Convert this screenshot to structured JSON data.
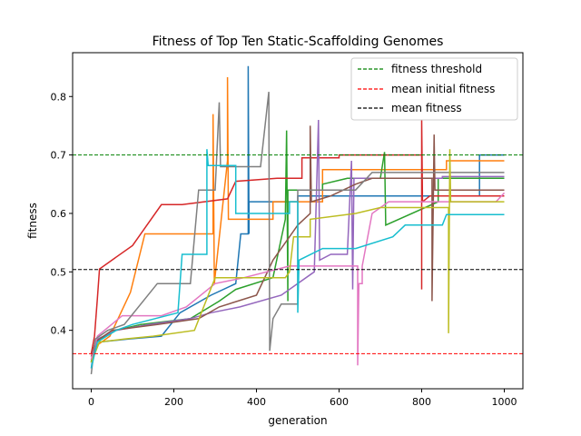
{
  "chart_data": {
    "type": "line",
    "title": "Fitness of Top Ten Static-Scaffolding Genomes",
    "xlabel": "generation",
    "ylabel": "fitness",
    "xlim": [
      -45,
      1045
    ],
    "ylim": [
      0.3,
      0.875
    ],
    "xticks": [
      0,
      200,
      400,
      600,
      800,
      1000
    ],
    "yticks": [
      0.4,
      0.5,
      0.6,
      0.7,
      0.8
    ],
    "xtick_labels": [
      "0",
      "200",
      "400",
      "600",
      "800",
      "1000"
    ],
    "ytick_labels": [
      "0.4",
      "0.5",
      "0.6",
      "0.7",
      "0.8"
    ],
    "grid": false,
    "legend_position": "top-right",
    "reference_lines": [
      {
        "name": "fitness threshold",
        "y": 0.7,
        "color": "#008000"
      },
      {
        "name": "mean initial fitness",
        "y": 0.36,
        "color": "#ff0000"
      },
      {
        "name": "mean fitness",
        "y": 0.504,
        "color": "#000000"
      }
    ],
    "series": [
      {
        "color": "#1f77b4",
        "points": [
          [
            0,
            0.335
          ],
          [
            5,
            0.36
          ],
          [
            20,
            0.38
          ],
          [
            90,
            0.385
          ],
          [
            170,
            0.39
          ],
          [
            215,
            0.43
          ],
          [
            290,
            0.46
          ],
          [
            350,
            0.48
          ],
          [
            362,
            0.565
          ],
          [
            380,
            0.565
          ],
          [
            380,
            0.852
          ],
          [
            382,
            0.565
          ],
          [
            382,
            0.62
          ],
          [
            420,
            0.62
          ],
          [
            500,
            0.62
          ],
          [
            500,
            0.63
          ],
          [
            640,
            0.63
          ],
          [
            940,
            0.63
          ],
          [
            940,
            0.7
          ],
          [
            1000,
            0.7
          ]
        ]
      },
      {
        "color": "#ff7f0e",
        "points": [
          [
            0,
            0.345
          ],
          [
            5,
            0.37
          ],
          [
            45,
            0.39
          ],
          [
            95,
            0.465
          ],
          [
            130,
            0.565
          ],
          [
            230,
            0.565
          ],
          [
            295,
            0.565
          ],
          [
            295,
            0.77
          ],
          [
            298,
            0.48
          ],
          [
            330,
            0.69
          ],
          [
            330,
            0.833
          ],
          [
            332,
            0.59
          ],
          [
            440,
            0.59
          ],
          [
            440,
            0.62
          ],
          [
            560,
            0.62
          ],
          [
            560,
            0.675
          ],
          [
            860,
            0.675
          ],
          [
            860,
            0.69
          ],
          [
            1000,
            0.69
          ]
        ]
      },
      {
        "color": "#2ca02c",
        "points": [
          [
            0,
            0.345
          ],
          [
            10,
            0.38
          ],
          [
            60,
            0.4
          ],
          [
            120,
            0.41
          ],
          [
            240,
            0.42
          ],
          [
            310,
            0.45
          ],
          [
            350,
            0.47
          ],
          [
            440,
            0.49
          ],
          [
            470,
            0.59
          ],
          [
            473,
            0.742
          ],
          [
            476,
            0.45
          ],
          [
            476,
            0.64
          ],
          [
            560,
            0.64
          ],
          [
            560,
            0.65
          ],
          [
            620,
            0.66
          ],
          [
            700,
            0.66
          ],
          [
            710,
            0.705
          ],
          [
            713,
            0.58
          ],
          [
            840,
            0.62
          ],
          [
            840,
            0.66
          ],
          [
            1000,
            0.66
          ]
        ]
      },
      {
        "color": "#d62728",
        "points": [
          [
            0,
            0.36
          ],
          [
            8,
            0.39
          ],
          [
            15,
            0.455
          ],
          [
            20,
            0.505
          ],
          [
            100,
            0.545
          ],
          [
            170,
            0.615
          ],
          [
            220,
            0.615
          ],
          [
            330,
            0.625
          ],
          [
            350,
            0.655
          ],
          [
            450,
            0.66
          ],
          [
            510,
            0.66
          ],
          [
            510,
            0.695
          ],
          [
            600,
            0.695
          ],
          [
            600,
            0.7
          ],
          [
            800,
            0.7
          ],
          [
            800,
            0.47
          ],
          [
            800,
            0.76
          ],
          [
            802,
            0.62
          ],
          [
            820,
            0.63
          ],
          [
            1000,
            0.63
          ]
        ]
      },
      {
        "color": "#9467bd",
        "points": [
          [
            0,
            0.35
          ],
          [
            15,
            0.385
          ],
          [
            60,
            0.4
          ],
          [
            140,
            0.41
          ],
          [
            240,
            0.42
          ],
          [
            290,
            0.43
          ],
          [
            360,
            0.44
          ],
          [
            460,
            0.46
          ],
          [
            540,
            0.5
          ],
          [
            550,
            0.76
          ],
          [
            553,
            0.52
          ],
          [
            580,
            0.53
          ],
          [
            620,
            0.53
          ],
          [
            630,
            0.69
          ],
          [
            633,
            0.47
          ],
          [
            636,
            0.66
          ],
          [
            700,
            0.66
          ],
          [
            850,
            0.66
          ],
          [
            850,
            0.663
          ],
          [
            1000,
            0.663
          ]
        ]
      },
      {
        "color": "#8c564b",
        "points": [
          [
            0,
            0.355
          ],
          [
            10,
            0.38
          ],
          [
            50,
            0.4
          ],
          [
            160,
            0.41
          ],
          [
            260,
            0.42
          ],
          [
            310,
            0.44
          ],
          [
            400,
            0.46
          ],
          [
            440,
            0.52
          ],
          [
            500,
            0.58
          ],
          [
            530,
            0.6
          ],
          [
            530,
            0.75
          ],
          [
            533,
            0.62
          ],
          [
            580,
            0.63
          ],
          [
            640,
            0.65
          ],
          [
            680,
            0.66
          ],
          [
            780,
            0.66
          ],
          [
            825,
            0.66
          ],
          [
            825,
            0.45
          ],
          [
            828,
            0.62
          ],
          [
            830,
            0.735
          ],
          [
            832,
            0.64
          ],
          [
            1000,
            0.64
          ]
        ]
      },
      {
        "color": "#e377c2",
        "points": [
          [
            0,
            0.35
          ],
          [
            15,
            0.39
          ],
          [
            75,
            0.425
          ],
          [
            170,
            0.425
          ],
          [
            230,
            0.44
          ],
          [
            300,
            0.48
          ],
          [
            370,
            0.49
          ],
          [
            480,
            0.51
          ],
          [
            560,
            0.51
          ],
          [
            645,
            0.51
          ],
          [
            645,
            0.34
          ],
          [
            648,
            0.48
          ],
          [
            656,
            0.48
          ],
          [
            656,
            0.51
          ],
          [
            680,
            0.6
          ],
          [
            720,
            0.62
          ],
          [
            860,
            0.62
          ],
          [
            980,
            0.62
          ],
          [
            1000,
            0.635
          ]
        ]
      },
      {
        "color": "#7f7f7f",
        "points": [
          [
            0,
            0.325
          ],
          [
            10,
            0.385
          ],
          [
            40,
            0.4
          ],
          [
            80,
            0.41
          ],
          [
            160,
            0.48
          ],
          [
            240,
            0.48
          ],
          [
            260,
            0.64
          ],
          [
            300,
            0.64
          ],
          [
            310,
            0.79
          ],
          [
            313,
            0.68
          ],
          [
            410,
            0.68
          ],
          [
            430,
            0.808
          ],
          [
            432,
            0.365
          ],
          [
            440,
            0.42
          ],
          [
            460,
            0.445
          ],
          [
            500,
            0.445
          ],
          [
            500,
            0.64
          ],
          [
            580,
            0.64
          ],
          [
            640,
            0.64
          ],
          [
            680,
            0.67
          ],
          [
            860,
            0.67
          ],
          [
            1000,
            0.67
          ]
        ]
      },
      {
        "color": "#bcbd22",
        "points": [
          [
            0,
            0.345
          ],
          [
            20,
            0.38
          ],
          [
            80,
            0.385
          ],
          [
            150,
            0.39
          ],
          [
            250,
            0.4
          ],
          [
            300,
            0.49
          ],
          [
            350,
            0.49
          ],
          [
            470,
            0.49
          ],
          [
            480,
            0.5
          ],
          [
            490,
            0.56
          ],
          [
            530,
            0.56
          ],
          [
            530,
            0.59
          ],
          [
            640,
            0.6
          ],
          [
            700,
            0.61
          ],
          [
            865,
            0.61
          ],
          [
            865,
            0.395
          ],
          [
            868,
            0.71
          ],
          [
            870,
            0.62
          ],
          [
            900,
            0.62
          ],
          [
            1000,
            0.62
          ]
        ]
      },
      {
        "color": "#17becf",
        "points": [
          [
            0,
            0.335
          ],
          [
            15,
            0.38
          ],
          [
            60,
            0.4
          ],
          [
            100,
            0.41
          ],
          [
            210,
            0.43
          ],
          [
            220,
            0.53
          ],
          [
            280,
            0.53
          ],
          [
            280,
            0.71
          ],
          [
            283,
            0.682
          ],
          [
            350,
            0.682
          ],
          [
            350,
            0.6
          ],
          [
            480,
            0.6
          ],
          [
            480,
            0.62
          ],
          [
            500,
            0.62
          ],
          [
            500,
            0.43
          ],
          [
            503,
            0.52
          ],
          [
            560,
            0.54
          ],
          [
            640,
            0.54
          ],
          [
            730,
            0.56
          ],
          [
            760,
            0.58
          ],
          [
            850,
            0.58
          ],
          [
            860,
            0.598
          ],
          [
            1000,
            0.598
          ]
        ]
      }
    ]
  }
}
